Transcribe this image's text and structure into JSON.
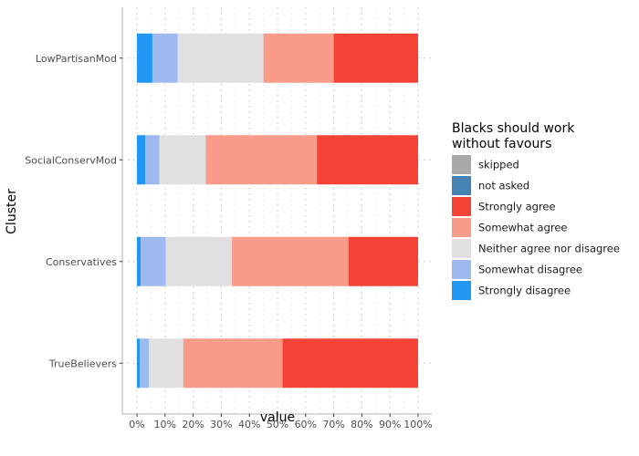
{
  "chart_data": {
    "type": "bar",
    "orientation": "horizontal",
    "stacked": true,
    "xlabel": "value",
    "ylabel": "Cluster",
    "xlim": [
      0,
      1
    ],
    "x_ticks": [
      "0%",
      "10%",
      "20%",
      "30%",
      "40%",
      "50%",
      "60%",
      "70%",
      "80%",
      "90%",
      "100%"
    ],
    "categories": [
      "LowPartisanMod",
      "SocialConservMod",
      "Conservatives",
      "TrueBelievers"
    ],
    "series": [
      {
        "name": "Strongly disagree",
        "color": "#2196f3",
        "values": [
          0.055,
          0.03,
          0.013,
          0.01
        ]
      },
      {
        "name": "Somewhat disagree",
        "color": "#9db9ef",
        "values": [
          0.09,
          0.05,
          0.09,
          0.033
        ]
      },
      {
        "name": "Neither agree  nor disagree",
        "color": "#e0e0e0",
        "values": [
          0.305,
          0.165,
          0.235,
          0.122
        ]
      },
      {
        "name": "Somewhat agree",
        "color": "#f89b89",
        "values": [
          0.25,
          0.395,
          0.415,
          0.353
        ]
      },
      {
        "name": "Strongly  agree",
        "color": "#f44336",
        "values": [
          0.3,
          0.36,
          0.247,
          0.482
        ]
      },
      {
        "name": "not asked",
        "color": "#4682b4",
        "values": [
          0,
          0,
          0,
          0
        ]
      },
      {
        "name": "skipped",
        "color": "#a9a9a9",
        "values": [
          0,
          0,
          0,
          0
        ]
      }
    ],
    "legend": {
      "title_lines": [
        "Blacks should work",
        "without favours"
      ],
      "order": [
        "skipped",
        "not asked",
        "Strongly  agree",
        "Somewhat agree",
        "Neither agree  nor disagree",
        "Somewhat disagree",
        "Strongly disagree"
      ],
      "placement": "right"
    },
    "grid": "x-dotted"
  }
}
